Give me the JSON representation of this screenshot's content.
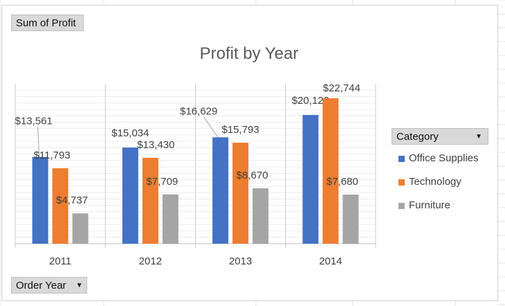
{
  "pivot": {
    "value_field": "Sum of Profit",
    "axis_field": "Order Year",
    "legend_field": "Category"
  },
  "colors": {
    "office_supplies": "#4472c4",
    "technology": "#ed7d31",
    "furniture": "#a5a5a5"
  },
  "icons": {
    "dropdown": "chevron-down-icon"
  },
  "chart_data": {
    "type": "bar",
    "title": "Profit by Year",
    "categories": [
      "2011",
      "2012",
      "2013",
      "2014"
    ],
    "series": [
      {
        "name": "Office Supplies",
        "values": [
          13561,
          15034,
          16629,
          20122
        ],
        "labels": [
          "$13,561",
          "$15,034",
          "$16,629",
          "$20,122"
        ]
      },
      {
        "name": "Technology",
        "values": [
          11793,
          13430,
          15793,
          22744
        ],
        "labels": [
          "$11,793",
          "$13,430",
          "$15,793",
          "$22,744"
        ]
      },
      {
        "name": "Furniture",
        "values": [
          4737,
          7709,
          8670,
          7680
        ],
        "labels": [
          "$4,737",
          "$7,709",
          "$8,670",
          "$7,680"
        ]
      }
    ],
    "ylim": [
      0,
      25000
    ],
    "grid": true,
    "legend_position": "right"
  }
}
